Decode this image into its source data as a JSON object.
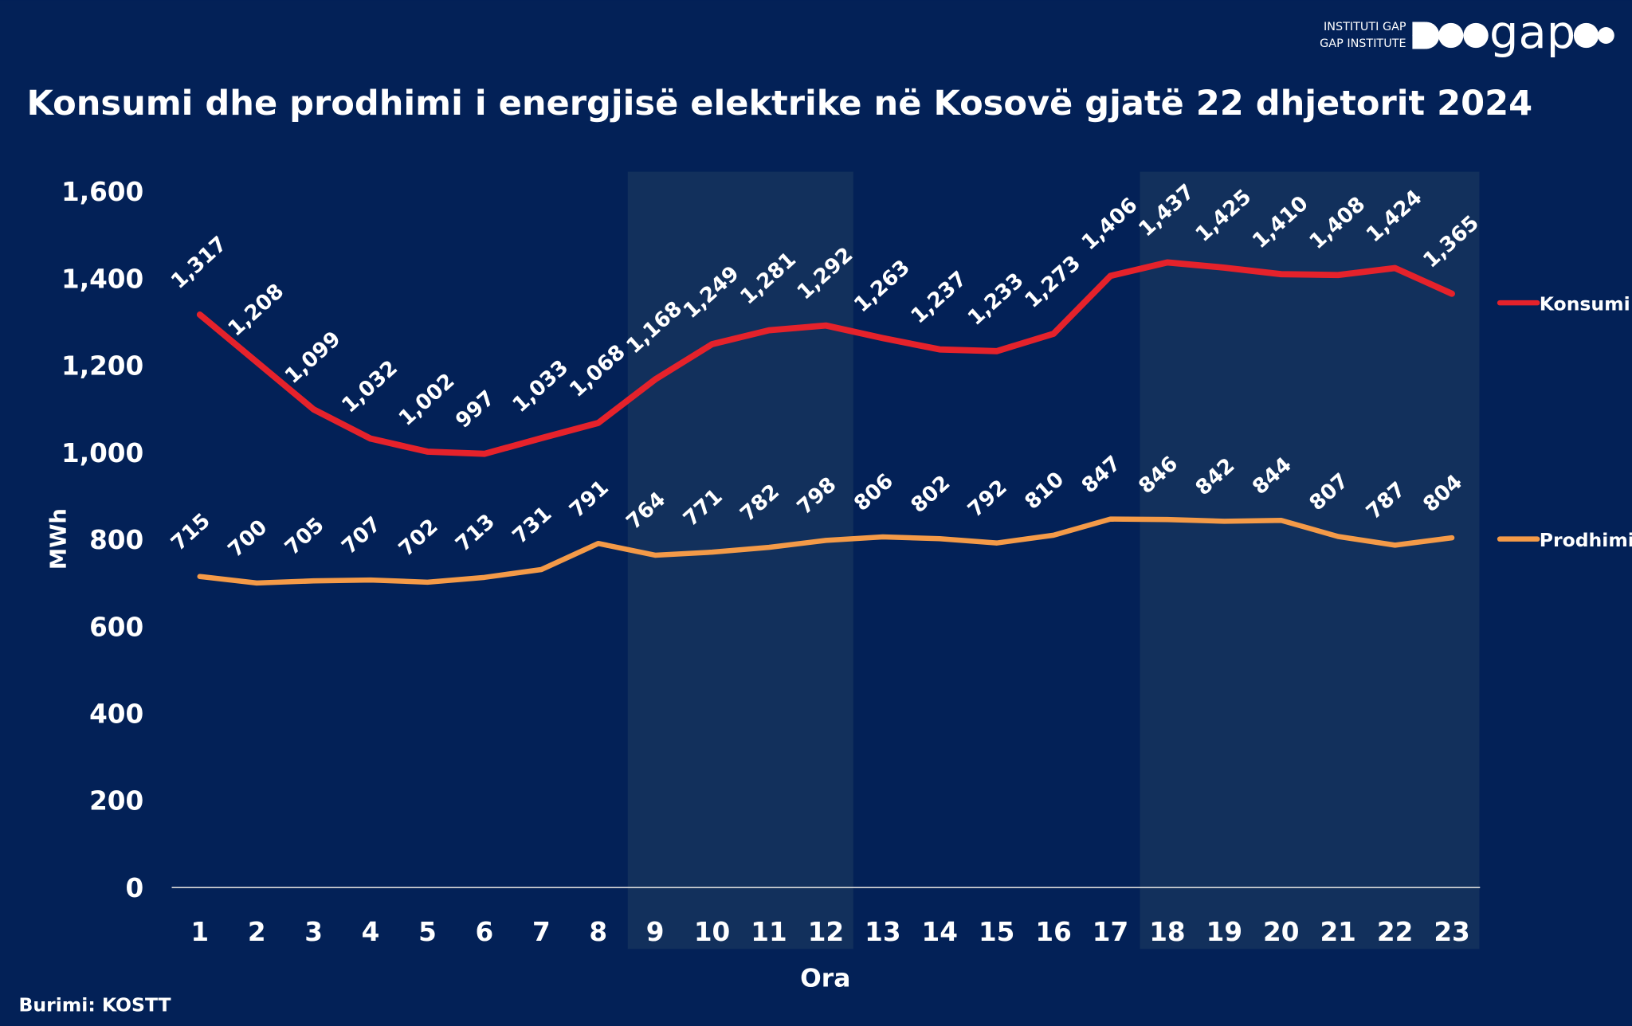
{
  "logo": {
    "line1": "INSTITUTI GAP",
    "line2": "GAP INSTITUTE",
    "wordmark": "gap"
  },
  "source": "Burimi: KOSTT",
  "colors": {
    "background": "#032157",
    "band": "#12305c",
    "konsumi": "#e5222b",
    "prodhimi": "#f49a48"
  },
  "chart_data": {
    "type": "line",
    "title": "Konsumi dhe prodhimi i energjisë elektrike në Kosovë gjatë 22 dhjetorit 2024",
    "xlabel": "Ora",
    "ylabel": "MWh",
    "ylim": [
      0,
      1600
    ],
    "yticks": [
      "0",
      "200",
      "400",
      "600",
      "800",
      "1,000",
      "1,200",
      "1,400",
      "1,600"
    ],
    "ytick_values": [
      0,
      200,
      400,
      600,
      800,
      1000,
      1200,
      1400,
      1600
    ],
    "x": [
      "1",
      "2",
      "3",
      "4",
      "5",
      "6",
      "7",
      "8",
      "9",
      "10",
      "11",
      "12",
      "13",
      "14",
      "15",
      "16",
      "17",
      "18",
      "19",
      "20",
      "21",
      "22",
      "23"
    ],
    "shaded_ranges": [
      [
        "9",
        "12"
      ],
      [
        "18",
        "23"
      ]
    ],
    "legend_placement": "right",
    "series": [
      {
        "name": "Konsumi",
        "values": [
          1317,
          1208,
          1099,
          1032,
          1002,
          997,
          1033,
          1068,
          1168,
          1249,
          1281,
          1292,
          1263,
          1237,
          1233,
          1273,
          1406,
          1437,
          1425,
          1410,
          1408,
          1424,
          1365
        ],
        "labels": [
          "1,317",
          "1,208",
          "1,099",
          "1,032",
          "1,002",
          "997",
          "1,033",
          "1,068",
          "1,168",
          "1,249",
          "1,281",
          "1,292",
          "1,263",
          "1,237",
          "1,233",
          "1,273",
          "1,406",
          "1,437",
          "1,425",
          "1,410",
          "1,408",
          "1,424",
          "1,365"
        ]
      },
      {
        "name": "Prodhimi",
        "values": [
          715,
          700,
          705,
          707,
          702,
          713,
          731,
          791,
          764,
          771,
          782,
          798,
          806,
          802,
          792,
          810,
          847,
          846,
          842,
          844,
          807,
          787,
          804
        ],
        "labels": [
          "715",
          "700",
          "705",
          "707",
          "702",
          "713",
          "731",
          "791",
          "764",
          "771",
          "782",
          "798",
          "806",
          "802",
          "792",
          "810",
          "847",
          "846",
          "842",
          "844",
          "807",
          "787",
          "804"
        ]
      }
    ]
  }
}
